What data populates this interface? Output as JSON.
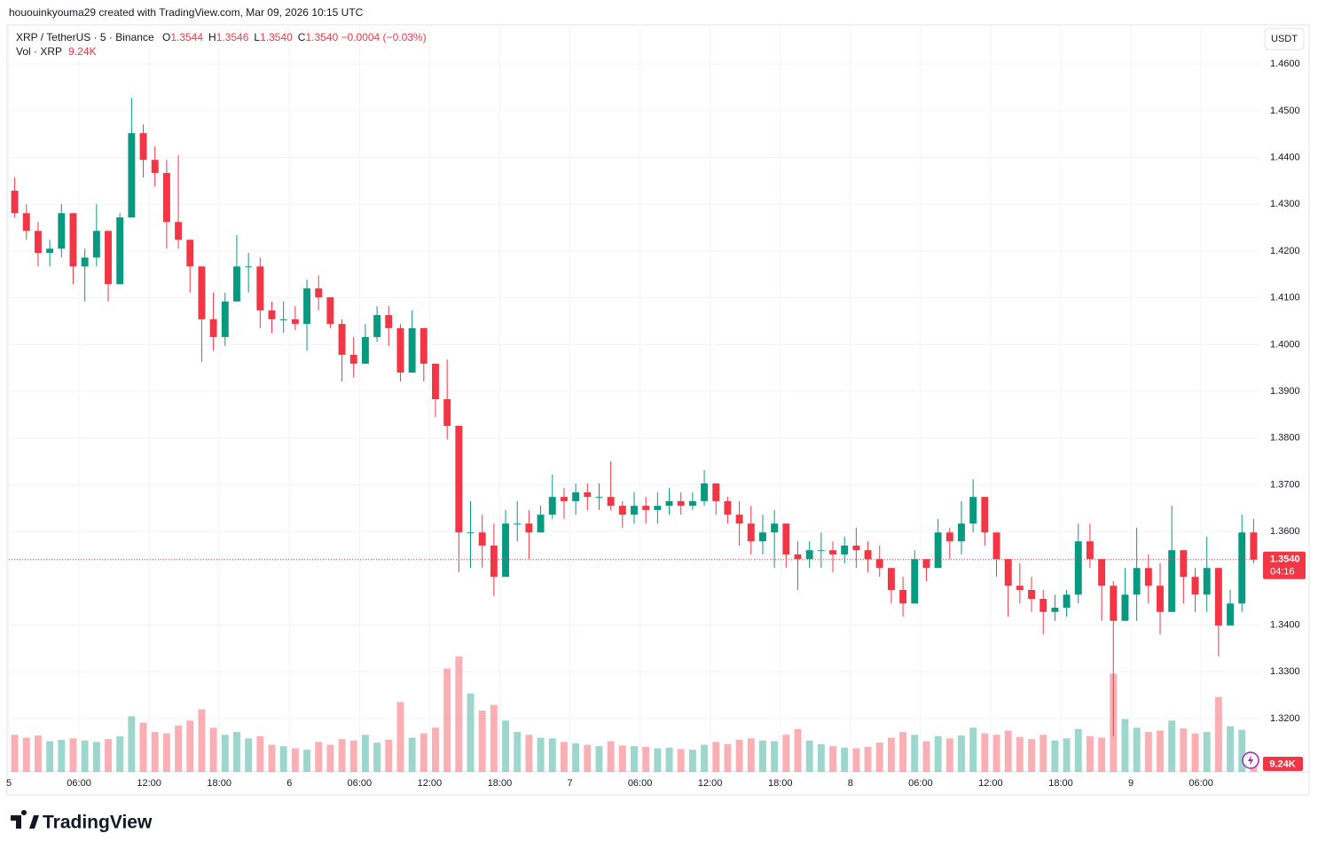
{
  "header": {
    "credit": "hououinkyouma29 created with TradingView.com, Mar 09, 2026 10:15 UTC",
    "symbol": "XRP / TetherUS · 5 · Binance",
    "ohlc": [
      {
        "key": "O",
        "value": "1.3544"
      },
      {
        "key": "H",
        "value": "1.3546"
      },
      {
        "key": "L",
        "value": "1.3540"
      },
      {
        "key": "C",
        "value": "1.3540"
      }
    ],
    "change": "−0.0004 (−0.03%)",
    "volume_name": "Vol · XRP",
    "volume_value": "9.24K"
  },
  "chart_data": {
    "type": "candlestick",
    "currency": "USDT",
    "up_color": "#089981",
    "down_color": "#f23645",
    "grid": true,
    "x": [
      0,
      1,
      2,
      3,
      4,
      5,
      6,
      7,
      8,
      9,
      10,
      11,
      12,
      13,
      14,
      15,
      16,
      17,
      18,
      19,
      20,
      21,
      22,
      23,
      24,
      25,
      26,
      27,
      28,
      29,
      30,
      31,
      32,
      33,
      34,
      35,
      36,
      37,
      38,
      39,
      40,
      41,
      42,
      43,
      44,
      45,
      46,
      47,
      48,
      49,
      50,
      51,
      52,
      53,
      54,
      55,
      56,
      57,
      58,
      59,
      60,
      61,
      62,
      63,
      64,
      65,
      66,
      67,
      68,
      69,
      70,
      71,
      72,
      73,
      74,
      75,
      76,
      77,
      78,
      79,
      80,
      81,
      82,
      83,
      84,
      85,
      86,
      87,
      88,
      89,
      90,
      91,
      92,
      93,
      94,
      95,
      96,
      97,
      98,
      99,
      100,
      101,
      102,
      103,
      104,
      105,
      106
    ],
    "open": [
      1.4329,
      1.4281,
      1.4243,
      1.4196,
      1.4205,
      1.4281,
      1.4167,
      1.4186,
      1.4243,
      1.4129,
      1.4272,
      1.4452,
      1.4395,
      1.4367,
      1.4262,
      1.4224,
      1.4167,
      1.4054,
      1.4016,
      1.4092,
      1.4167,
      1.4167,
      1.4073,
      1.4054,
      1.4054,
      1.4044,
      1.412,
      1.4101,
      1.4044,
      1.3978,
      1.3959,
      1.4016,
      1.4063,
      1.4035,
      1.394,
      1.4035,
      1.3959,
      1.3883,
      1.3826,
      1.3598,
      1.3598,
      1.357,
      1.3503,
      1.3617,
      1.3617,
      1.3598,
      1.3636,
      1.3674,
      1.3665,
      1.3684,
      1.3674,
      1.3674,
      1.3655,
      1.3636,
      1.3655,
      1.3646,
      1.3655,
      1.3665,
      1.3655,
      1.3665,
      1.3703,
      1.3665,
      1.3636,
      1.3617,
      1.3579,
      1.3598,
      1.3617,
      1.3551,
      1.3541,
      1.356,
      1.356,
      1.3551,
      1.357,
      1.356,
      1.3541,
      1.3522,
      1.3475,
      1.3446,
      1.3541,
      1.3522,
      1.3598,
      1.3579,
      1.3617,
      1.3674,
      1.3598,
      1.3541,
      1.3484,
      1.3475,
      1.3456,
      1.3428,
      1.3437,
      1.3465,
      1.3579,
      1.3541,
      1.3484,
      1.3409,
      1.3465,
      1.3522,
      1.3484,
      1.3428,
      1.356,
      1.3503,
      1.3465,
      1.3522,
      1.3399,
      1.3446,
      1.3598
    ],
    "high": [
      1.4357,
      1.43,
      1.4262,
      1.4224,
      1.43,
      1.4281,
      1.4205,
      1.43,
      1.4243,
      1.4281,
      1.4528,
      1.4471,
      1.4424,
      1.4395,
      1.4405,
      1.4224,
      1.4167,
      1.4111,
      1.4111,
      1.4234,
      1.4196,
      1.4186,
      1.4092,
      1.4092,
      1.4082,
      1.4139,
      1.4148,
      1.4101,
      1.4054,
      1.4016,
      1.4044,
      1.4082,
      1.4082,
      1.4044,
      1.4073,
      1.4035,
      1.3959,
      1.3968,
      1.3826,
      1.3665,
      1.3636,
      1.3617,
      1.3646,
      1.3665,
      1.3646,
      1.3655,
      1.3722,
      1.3693,
      1.3703,
      1.3703,
      1.3703,
      1.375,
      1.3665,
      1.3684,
      1.3674,
      1.3684,
      1.3693,
      1.3684,
      1.3684,
      1.3731,
      1.3703,
      1.3674,
      1.3665,
      1.3655,
      1.3636,
      1.3646,
      1.3617,
      1.3579,
      1.3579,
      1.3598,
      1.3579,
      1.3589,
      1.3608,
      1.3579,
      1.357,
      1.3522,
      1.3503,
      1.356,
      1.3541,
      1.3627,
      1.3608,
      1.3665,
      1.3712,
      1.3674,
      1.3598,
      1.3541,
      1.3532,
      1.3503,
      1.3475,
      1.3465,
      1.3475,
      1.3617,
      1.3617,
      1.3541,
      1.3494,
      1.3522,
      1.3608,
      1.3551,
      1.3532,
      1.3655,
      1.356,
      1.3522,
      1.3589,
      1.3522,
      1.3475,
      1.3636,
      1.3627
    ],
    "low": [
      1.4272,
      1.4224,
      1.4167,
      1.4167,
      1.4186,
      1.4129,
      1.4092,
      1.4167,
      1.4092,
      1.4129,
      1.4272,
      1.4357,
      1.4338,
      1.4205,
      1.4205,
      1.4111,
      1.3963,
      1.3987,
      1.3997,
      1.4092,
      1.4111,
      1.4035,
      1.4025,
      1.4025,
      1.4031,
      1.3987,
      1.4073,
      1.4035,
      1.3921,
      1.393,
      1.3959,
      1.4006,
      1.3997,
      1.3921,
      1.394,
      1.3921,
      1.3845,
      1.3797,
      1.3513,
      1.3522,
      1.3522,
      1.3462,
      1.3503,
      1.3579,
      1.3541,
      1.3598,
      1.3627,
      1.3627,
      1.3636,
      1.3646,
      1.3646,
      1.3646,
      1.3608,
      1.3617,
      1.3617,
      1.3617,
      1.3636,
      1.3636,
      1.3646,
      1.3655,
      1.3636,
      1.3617,
      1.357,
      1.3551,
      1.3551,
      1.3522,
      1.3522,
      1.3475,
      1.3522,
      1.3522,
      1.3513,
      1.3532,
      1.3522,
      1.3513,
      1.3503,
      1.3446,
      1.3418,
      1.3446,
      1.3494,
      1.3522,
      1.3541,
      1.3551,
      1.3598,
      1.357,
      1.3503,
      1.3418,
      1.3446,
      1.3428,
      1.338,
      1.3409,
      1.3418,
      1.3446,
      1.3522,
      1.3409,
      1.3162,
      1.3409,
      1.3409,
      1.3446,
      1.338,
      1.3428,
      1.3446,
      1.3428,
      1.3428,
      1.3333,
      1.3399,
      1.3428,
      1.3532
    ],
    "close": [
      1.4281,
      1.4243,
      1.4196,
      1.4205,
      1.4281,
      1.4167,
      1.4186,
      1.4243,
      1.4129,
      1.4272,
      1.4452,
      1.4395,
      1.4367,
      1.4262,
      1.4224,
      1.4167,
      1.4054,
      1.4016,
      1.4092,
      1.4167,
      1.4167,
      1.4073,
      1.4054,
      1.4054,
      1.4044,
      1.412,
      1.4101,
      1.4044,
      1.3978,
      1.3959,
      1.4016,
      1.4063,
      1.4035,
      1.394,
      1.4035,
      1.3959,
      1.3883,
      1.3826,
      1.3598,
      1.3598,
      1.357,
      1.3503,
      1.3617,
      1.3617,
      1.3598,
      1.3636,
      1.3674,
      1.3665,
      1.3684,
      1.3674,
      1.3674,
      1.3655,
      1.3636,
      1.3655,
      1.3646,
      1.3655,
      1.3665,
      1.3655,
      1.3665,
      1.3703,
      1.3665,
      1.3636,
      1.3617,
      1.3579,
      1.3598,
      1.3617,
      1.3551,
      1.3541,
      1.356,
      1.356,
      1.3551,
      1.357,
      1.356,
      1.3541,
      1.3522,
      1.3475,
      1.3446,
      1.3541,
      1.3522,
      1.3598,
      1.3579,
      1.3617,
      1.3674,
      1.3598,
      1.3541,
      1.3484,
      1.3475,
      1.3456,
      1.3428,
      1.3437,
      1.3465,
      1.3579,
      1.3541,
      1.3484,
      1.3409,
      1.3465,
      1.3522,
      1.3484,
      1.3428,
      1.356,
      1.3503,
      1.3465,
      1.3522,
      1.3399,
      1.3446,
      1.3598,
      1.354
    ],
    "volume": [
      520000,
      480000,
      510000,
      430000,
      450000,
      470000,
      440000,
      420000,
      460000,
      500000,
      780000,
      690000,
      560000,
      540000,
      650000,
      720000,
      880000,
      620000,
      520000,
      560000,
      470000,
      500000,
      380000,
      360000,
      330000,
      310000,
      420000,
      380000,
      460000,
      440000,
      520000,
      410000,
      450000,
      980000,
      480000,
      540000,
      620000,
      1450000,
      1620000,
      1100000,
      860000,
      940000,
      720000,
      560000,
      520000,
      480000,
      470000,
      420000,
      400000,
      380000,
      360000,
      430000,
      370000,
      360000,
      350000,
      330000,
      340000,
      320000,
      310000,
      380000,
      420000,
      390000,
      450000,
      470000,
      440000,
      430000,
      520000,
      600000,
      440000,
      390000,
      360000,
      340000,
      330000,
      350000,
      410000,
      480000,
      560000,
      520000,
      430000,
      500000,
      470000,
      510000,
      620000,
      540000,
      520000,
      580000,
      490000,
      460000,
      520000,
      440000,
      470000,
      600000,
      500000,
      480000,
      1380000,
      740000,
      620000,
      560000,
      580000,
      720000,
      610000,
      540000,
      560000,
      1050000,
      640000,
      590000,
      120000
    ],
    "xlim": [
      0,
      107
    ],
    "ylim": [
      1.3086,
      1.468
    ],
    "xticks": [
      {
        "value": 0,
        "label": "5"
      },
      {
        "value": 6,
        "label": "06:00"
      },
      {
        "value": 12,
        "label": "12:00"
      },
      {
        "value": 18,
        "label": "18:00"
      },
      {
        "value": 24,
        "label": "6"
      },
      {
        "value": 30,
        "label": "06:00"
      },
      {
        "value": 36,
        "label": "12:00"
      },
      {
        "value": 42,
        "label": "18:00"
      },
      {
        "value": 48,
        "label": "7"
      },
      {
        "value": 54,
        "label": "06:00"
      },
      {
        "value": 60,
        "label": "12:00"
      },
      {
        "value": 66,
        "label": "18:00"
      },
      {
        "value": 72,
        "label": "8"
      },
      {
        "value": 78,
        "label": "06:00"
      },
      {
        "value": 84,
        "label": "12:00"
      },
      {
        "value": 90,
        "label": "18:00"
      },
      {
        "value": 96,
        "label": "9"
      },
      {
        "value": 102,
        "label": "06:00"
      }
    ],
    "yticks": [
      {
        "value": 1.32,
        "label": "1.3200"
      },
      {
        "value": 1.33,
        "label": "1.3300"
      },
      {
        "value": 1.34,
        "label": "1.3400"
      },
      {
        "value": 1.36,
        "label": "1.3600"
      },
      {
        "value": 1.37,
        "label": "1.3700"
      },
      {
        "value": 1.38,
        "label": "1.3800"
      },
      {
        "value": 1.39,
        "label": "1.3900"
      },
      {
        "value": 1.4,
        "label": "1.4000"
      },
      {
        "value": 1.41,
        "label": "1.4100"
      },
      {
        "value": 1.42,
        "label": "1.4200"
      },
      {
        "value": 1.43,
        "label": "1.4300"
      },
      {
        "value": 1.44,
        "label": "1.4400"
      },
      {
        "value": 1.45,
        "label": "1.4500"
      },
      {
        "value": 1.46,
        "label": "1.4600"
      }
    ],
    "last_price": {
      "value": 1.354,
      "label": "1.3540"
    },
    "countdown": "04:16"
  },
  "footer": {
    "logo": "TradingView"
  }
}
